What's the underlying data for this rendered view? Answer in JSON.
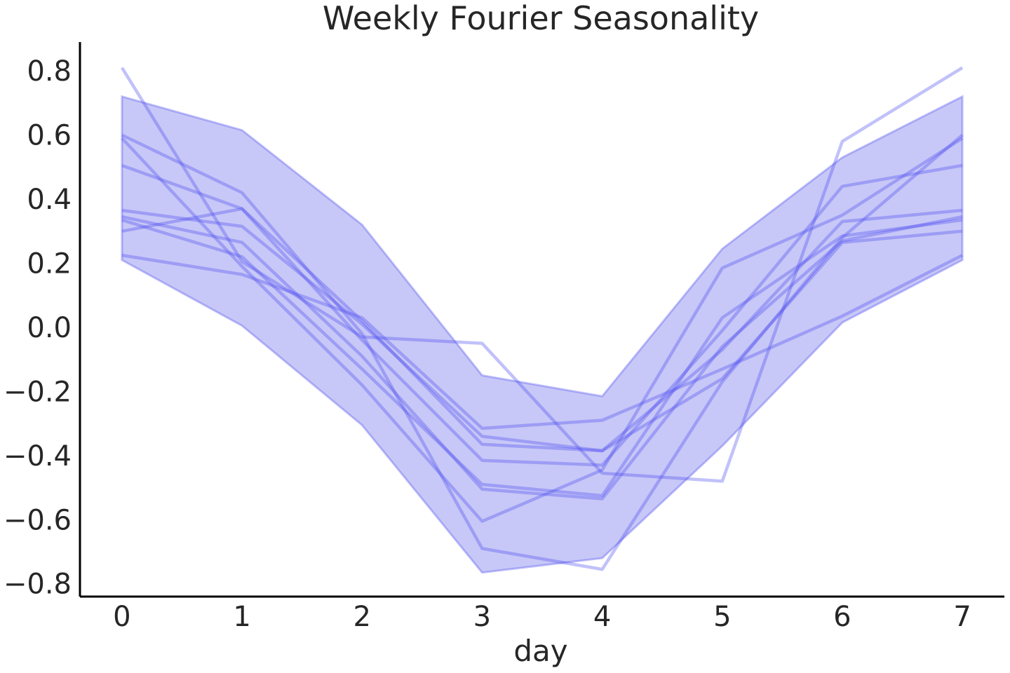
{
  "chart_data": {
    "type": "line",
    "title": "Weekly Fourier Seasonality",
    "xlabel": "day",
    "ylabel": "",
    "x": [
      0,
      1,
      2,
      3,
      4,
      5,
      6,
      7
    ],
    "xlim": [
      -0.35,
      7.35
    ],
    "ylim": [
      -0.84,
      0.89
    ],
    "x_ticks": [
      "0",
      "1",
      "2",
      "3",
      "4",
      "5",
      "6",
      "7"
    ],
    "y_ticks": [
      {
        "value": 0.8,
        "label": "0.8"
      },
      {
        "value": 0.6,
        "label": "0.6"
      },
      {
        "value": 0.4,
        "label": "0.4"
      },
      {
        "value": 0.2,
        "label": "0.2"
      },
      {
        "value": 0.0,
        "label": "0.0"
      },
      {
        "value": -0.2,
        "label": "−0.2"
      },
      {
        "value": -0.4,
        "label": "−0.4"
      },
      {
        "value": -0.6,
        "label": "−0.6"
      },
      {
        "value": -0.8,
        "label": "−0.8"
      }
    ],
    "grid": false,
    "band": {
      "upper": [
        0.72,
        0.615,
        0.32,
        -0.15,
        -0.215,
        0.245,
        0.53,
        0.72
      ],
      "lower": [
        0.21,
        0.005,
        -0.305,
        -0.765,
        -0.72,
        -0.37,
        0.015,
        0.21
      ]
    },
    "series": [
      {
        "values": [
          0.81,
          0.205,
          -0.03,
          -0.05,
          -0.455,
          -0.48,
          0.58,
          0.81
        ]
      },
      {
        "values": [
          0.6,
          0.42,
          -0.02,
          -0.69,
          -0.755,
          -0.17,
          0.28,
          0.6
        ]
      },
      {
        "values": [
          0.59,
          0.19,
          -0.18,
          -0.605,
          -0.445,
          0.185,
          0.35,
          0.59
        ]
      },
      {
        "values": [
          0.505,
          0.37,
          -0.04,
          -0.415,
          -0.43,
          -0.01,
          0.44,
          0.505
        ]
      },
      {
        "values": [
          0.365,
          0.315,
          0.01,
          -0.34,
          -0.385,
          -0.07,
          0.33,
          0.365
        ]
      },
      {
        "values": [
          0.345,
          0.265,
          -0.09,
          -0.505,
          -0.535,
          -0.06,
          0.27,
          0.345
        ]
      },
      {
        "values": [
          0.335,
          0.22,
          -0.13,
          -0.49,
          -0.525,
          0.03,
          0.285,
          0.335
        ]
      },
      {
        "values": [
          0.3,
          0.37,
          0.02,
          -0.365,
          -0.385,
          -0.16,
          0.265,
          0.3
        ]
      },
      {
        "values": [
          0.225,
          0.165,
          0.03,
          -0.315,
          -0.29,
          -0.13,
          0.035,
          0.225
        ]
      }
    ],
    "colors": {
      "band_fill": "#8c8cf0",
      "band_edge": "#4d4df0",
      "line": "#4d4df0",
      "axis": "#000000",
      "text": "#262626"
    }
  }
}
